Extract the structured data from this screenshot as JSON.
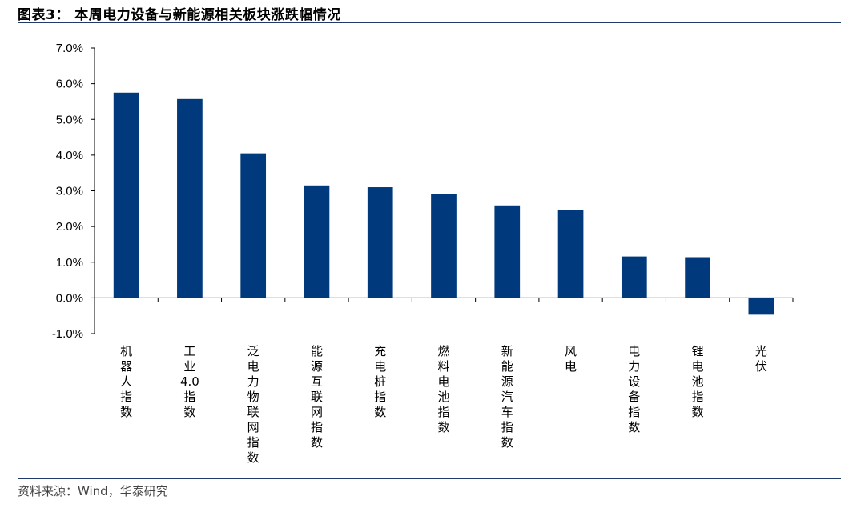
{
  "header": {
    "title": "图表3：  本周电力设备与新能源相关板块涨跌幅情况"
  },
  "footer": {
    "source": "资料来源：Wind，华泰研究"
  },
  "chart_data": {
    "type": "bar",
    "title": "",
    "xlabel": "",
    "ylabel": "",
    "categories": [
      "机器人指数",
      "工业4.0指数",
      "泛电力物联网指数",
      "能源互联网指数",
      "充电桩指数",
      "燃料电池指数",
      "新能源汽车指数",
      "风电",
      "电力设备指数",
      "锂电池指数",
      "光伏"
    ],
    "values": [
      5.75,
      5.57,
      4.05,
      3.15,
      3.1,
      2.92,
      2.59,
      2.47,
      1.16,
      1.14,
      -0.47
    ],
    "ylim": [
      -1.0,
      7.0
    ],
    "yticks": [
      "-1.0%",
      "0.0%",
      "1.0%",
      "2.0%",
      "3.0%",
      "4.0%",
      "5.0%",
      "6.0%",
      "7.0%"
    ],
    "bar_color": "#003a7d",
    "grid": false,
    "legend": "none"
  }
}
